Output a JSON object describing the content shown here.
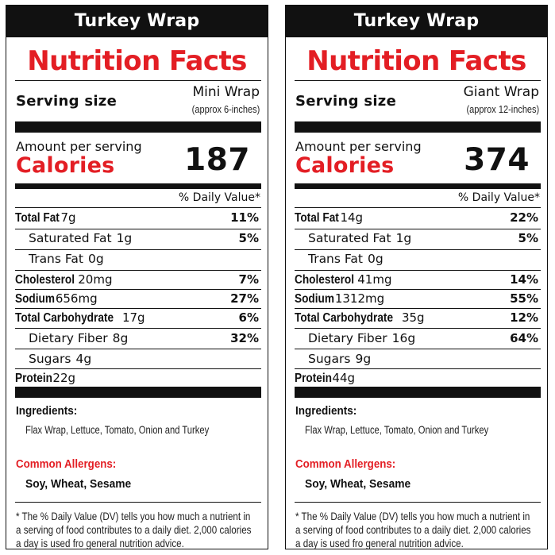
{
  "labels": [
    {
      "title": "Turkey Wrap",
      "heading": "Nutrition Facts",
      "serving_label": "Serving size",
      "serving_size": "Mini Wrap",
      "serving_note": "(approx 6-inches)",
      "amount_per_serving": "Amount per serving",
      "calories_label": "Calories",
      "calories": "187",
      "dv_header": "% Daily Value*",
      "nutrients": [
        {
          "name": "Total Fat",
          "amount": "7g",
          "dv": "11%"
        },
        {
          "name": "Saturated Fat",
          "amount": "1g",
          "dv": "5%"
        },
        {
          "name": "Trans Fat",
          "amount": "0g",
          "dv": ""
        },
        {
          "name": "Cholesterol",
          "amount": "20mg",
          "dv": "7%"
        },
        {
          "name": "Sodium",
          "amount": "656mg",
          "dv": "27%"
        },
        {
          "name": "Total Carbohydrate",
          "amount": "17g",
          "dv": "6%"
        },
        {
          "name": "Dietary Fiber",
          "amount": "8g",
          "dv": "32%"
        },
        {
          "name": "Sugars",
          "amount": "4g",
          "dv": ""
        },
        {
          "name": "Protein",
          "amount": "22g",
          "dv": ""
        }
      ],
      "ingredients_heading": "Ingredients:",
      "ingredients": "Flax Wrap,  Lettuce, Tomato, Onion and Turkey",
      "allergens_heading": "Common Allergens:",
      "allergens": "Soy, Wheat, Sesame",
      "footnote": [
        "* The % Daily Value (DV) tells you how much a nutrient in",
        "a serving of food contributes to a daily diet.  2,000 calories",
        "a day is used fro general nutrition advice."
      ]
    },
    {
      "title": "Turkey Wrap",
      "heading": "Nutrition Facts",
      "serving_label": "Serving size",
      "serving_size": "Giant Wrap",
      "serving_note": "(approx 12-inches)",
      "amount_per_serving": "Amount per serving",
      "calories_label": "Calories",
      "calories": "374",
      "dv_header": "% Daily Value*",
      "nutrients": [
        {
          "name": "Total Fat",
          "amount": "14g",
          "dv": "22%"
        },
        {
          "name": "Saturated Fat",
          "amount": "1g",
          "dv": "5%"
        },
        {
          "name": "Trans Fat",
          "amount": "0g",
          "dv": ""
        },
        {
          "name": "Cholesterol",
          "amount": "41mg",
          "dv": "14%"
        },
        {
          "name": "Sodium",
          "amount": "1312mg",
          "dv": "55%"
        },
        {
          "name": "Total Carbohydrate",
          "amount": "35g",
          "dv": "12%"
        },
        {
          "name": "Dietary Fiber",
          "amount": "16g",
          "dv": "64%"
        },
        {
          "name": "Sugars",
          "amount": "9g",
          "dv": ""
        },
        {
          "name": "Protein",
          "amount": "44g",
          "dv": ""
        }
      ],
      "ingredients_heading": "Ingredients:",
      "ingredients": "Flax Wrap, Lettuce, Tomato, Onion and Turkey",
      "allergens_heading": "Common Allergens:",
      "allergens": "Soy, Wheat, Sesame",
      "footnote": [
        "* The % Daily Value (DV) tells you how much a nutrient in",
        "a serving of food contributes to a daily diet.  2,000 calories",
        "a day is used fro general nutrition advice."
      ]
    }
  ],
  "colors": {
    "accent_red": "#e31e24",
    "ink": "#111111",
    "background": "#ffffff"
  }
}
